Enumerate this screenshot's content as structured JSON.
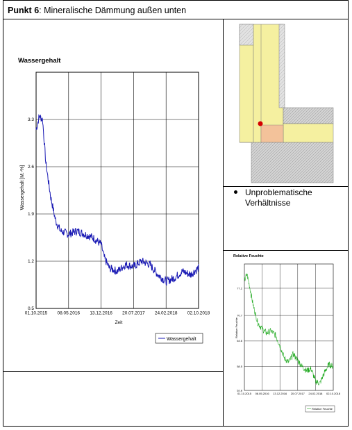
{
  "header": {
    "label": "Punkt 6",
    "separator": ": ",
    "title": "Mineralische Dämmung außen unten"
  },
  "bullet": {
    "text_line1": "Unproblematische",
    "text_line2": "Verhältnisse"
  },
  "colors": {
    "main_series": "#1a1ab4",
    "small_series": "#22aa22",
    "wall_fill": "#f5f0a0",
    "marker": "#d40000",
    "highlight": "#f3c29a"
  },
  "chart_data": [
    {
      "type": "line",
      "title": "Wassergehalt",
      "xlabel": "Zeit",
      "ylabel": "Wassergehalt [M.-%]",
      "x_ticks": [
        "01.10.2015",
        "08.05.2016",
        "13.12.2016",
        "20.07.2017",
        "24.02.2018",
        "02.10.2018"
      ],
      "y_ticks": [
        0.5,
        1.2,
        1.9,
        2.6,
        3.3
      ],
      "ylim": [
        0.5,
        4.0
      ],
      "legend": {
        "entry": "Wassergehalt",
        "position": "bottom-right"
      },
      "grid": true,
      "series": [
        {
          "name": "Wassergehalt",
          "x": [
            0,
            0.02,
            0.04,
            0.06,
            0.09,
            0.12,
            0.15,
            0.2,
            0.25,
            0.3,
            0.35,
            0.4,
            0.42,
            0.45,
            0.5,
            0.55,
            0.6,
            0.65,
            0.7,
            0.75,
            0.8,
            0.85,
            0.9,
            0.95,
            1.0
          ],
          "values": [
            3.15,
            3.35,
            3.3,
            2.65,
            2.15,
            1.8,
            1.65,
            1.6,
            1.65,
            1.6,
            1.55,
            1.45,
            1.25,
            1.1,
            1.05,
            1.15,
            1.12,
            1.2,
            1.15,
            1.0,
            0.9,
            0.95,
            1.05,
            1.0,
            1.1
          ]
        }
      ]
    },
    {
      "type": "line",
      "title": "Relative Feuchte",
      "xlabel": "",
      "ylabel": "Relative Feuchte",
      "x_ticks": [
        "01.10.2015",
        "08.05.2016",
        "13.12.2016",
        "20.07.2017",
        "24.02.2018",
        "02.10.2018"
      ],
      "y_ticks": [
        52.8,
        58.5,
        64.6,
        70.7,
        77.2
      ],
      "ylim": [
        52.8,
        83.0
      ],
      "legend": {
        "entry": "Relative Feuchte",
        "position": "bottom-right"
      },
      "grid": true,
      "series": [
        {
          "name": "Relative Feuchte",
          "x": [
            0,
            0.03,
            0.06,
            0.1,
            0.15,
            0.2,
            0.25,
            0.3,
            0.35,
            0.4,
            0.45,
            0.5,
            0.55,
            0.6,
            0.65,
            0.7,
            0.75,
            0.8,
            0.85,
            0.9,
            0.95,
            1.0
          ],
          "values": [
            79.0,
            80.5,
            77.5,
            73.0,
            69.0,
            67.5,
            66.5,
            67.0,
            66.0,
            63.5,
            60.5,
            59.5,
            61.5,
            60.0,
            58.5,
            57.5,
            58.0,
            55.0,
            54.5,
            57.0,
            59.0,
            58.5
          ]
        }
      ]
    }
  ]
}
